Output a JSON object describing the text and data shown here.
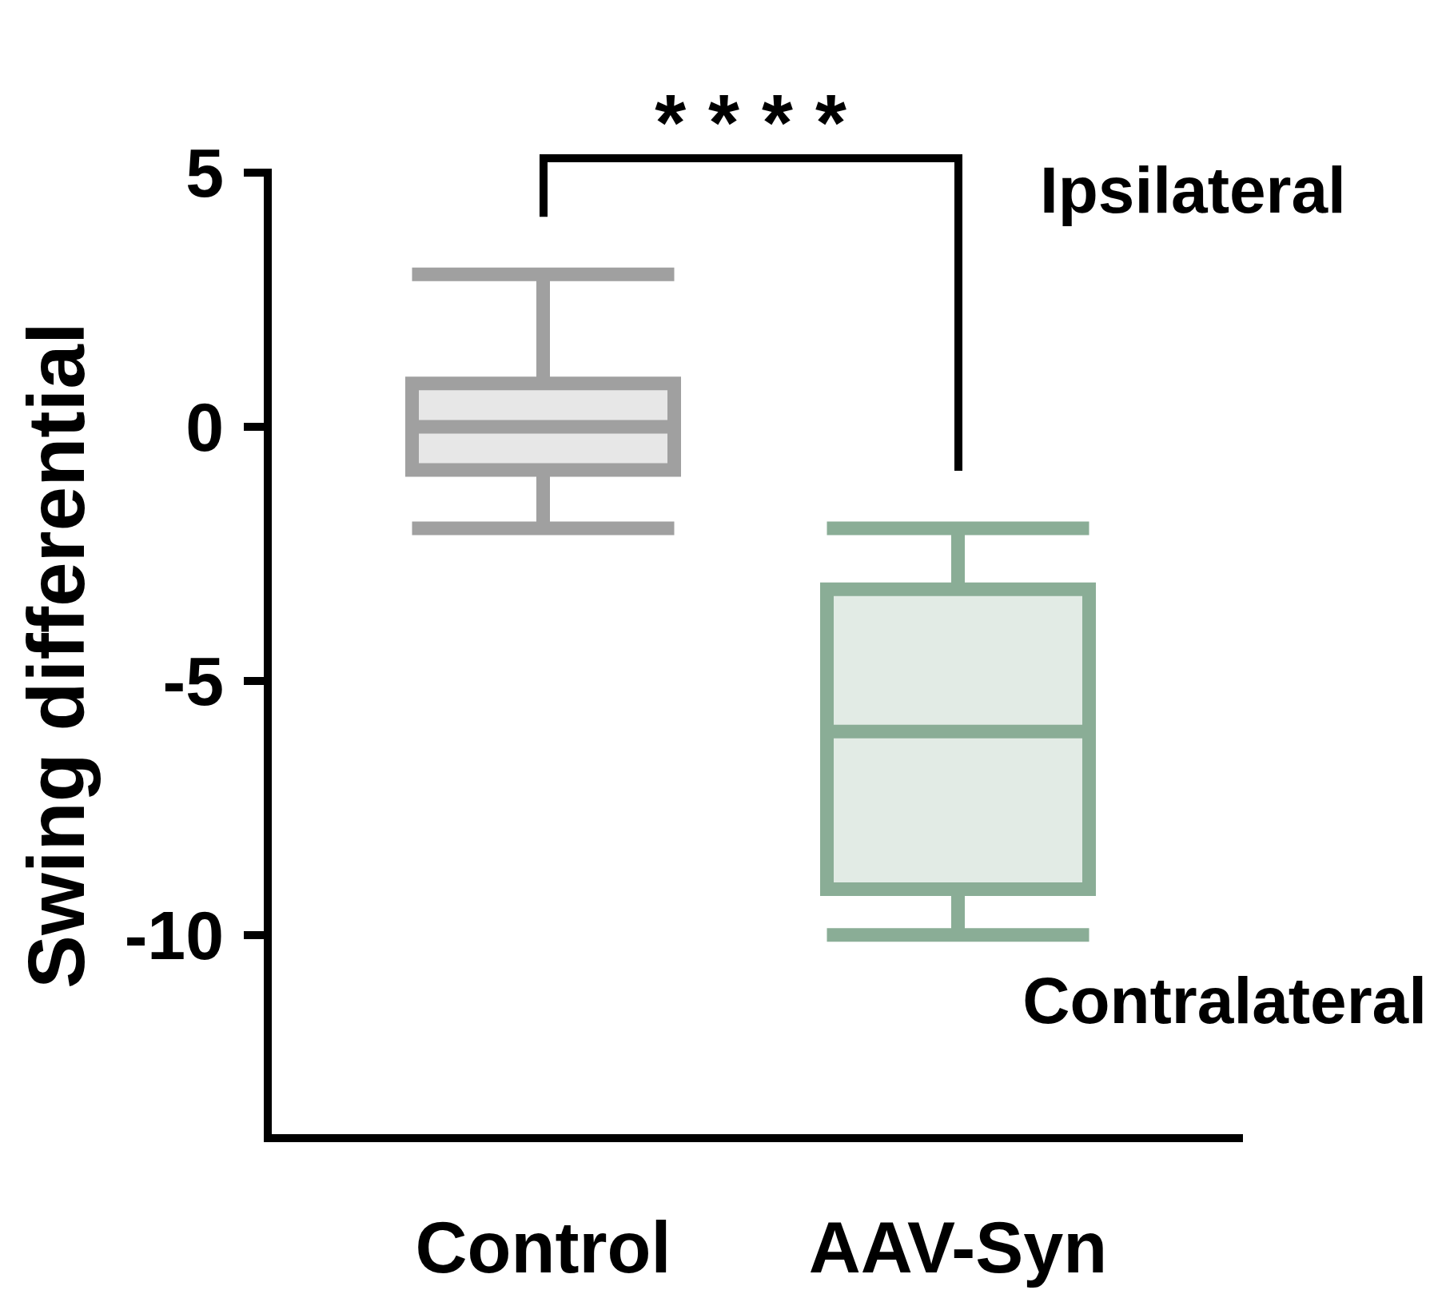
{
  "chart_data": {
    "type": "box",
    "categories": [
      "Control",
      "AAV-Syn"
    ],
    "boxes": [
      {
        "low": -2,
        "q1": -0.85,
        "median": 0,
        "q3": 0.85,
        "high": 3
      },
      {
        "low": -10,
        "q1": -9.1,
        "median": -6,
        "q3": -3.2,
        "high": -2
      }
    ],
    "colors": [
      "#a0a0a0",
      "#8aad96"
    ],
    "ylabel": "Swing differential",
    "ylim": [
      -14,
      5
    ],
    "yticks": [
      -10,
      -5,
      0,
      5
    ],
    "annotations": [
      "****",
      "Ipsilateral",
      "Contralateral"
    ]
  }
}
